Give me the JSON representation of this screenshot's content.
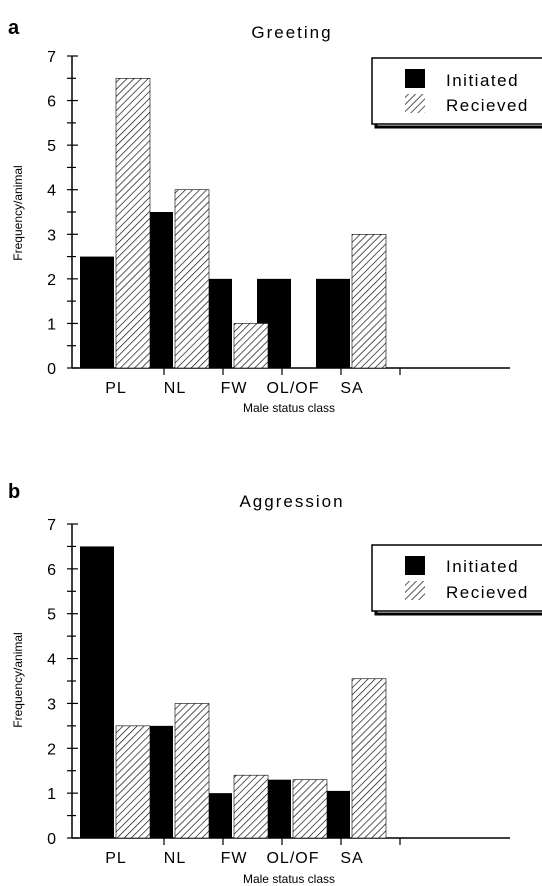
{
  "colors": {
    "initiated": "#000000",
    "recieved_hatch": "#000000",
    "background": "#ffffff"
  },
  "chart_data": [
    {
      "type": "bar",
      "panel_label": "a",
      "title": "Greeting",
      "xlabel": "Male status class",
      "ylabel": "Frequency/animal",
      "ylim": [
        0,
        7
      ],
      "yticks": [
        "0",
        "1",
        "2",
        "3",
        "4",
        "5",
        "6",
        "7"
      ],
      "categories": [
        "PL",
        "NL",
        "FW",
        "OL/OF",
        "SA"
      ],
      "series": [
        {
          "name": "Initiated",
          "style": "solid",
          "values": [
            2.5,
            3.5,
            2.0,
            2.0,
            2.0
          ]
        },
        {
          "name": "Recieved",
          "style": "hatched",
          "values": [
            6.5,
            4.0,
            1.0,
            0.0,
            3.0
          ]
        }
      ],
      "grid": false,
      "legend_position": "top-right"
    },
    {
      "type": "bar",
      "panel_label": "b",
      "title": "Aggression",
      "xlabel": "Male status class",
      "ylabel": "Frequency/animal",
      "ylim": [
        0,
        7
      ],
      "yticks": [
        "0",
        "1",
        "2",
        "3",
        "4",
        "5",
        "6",
        "7"
      ],
      "categories": [
        "PL",
        "NL",
        "FW",
        "OL/OF",
        "SA"
      ],
      "series": [
        {
          "name": "Initiated",
          "style": "solid",
          "values": [
            6.5,
            2.5,
            1.0,
            1.3,
            1.05
          ]
        },
        {
          "name": "Recieved",
          "style": "hatched",
          "values": [
            2.5,
            3.0,
            1.4,
            1.3,
            3.55
          ]
        }
      ],
      "grid": false,
      "legend_position": "top-right"
    }
  ]
}
